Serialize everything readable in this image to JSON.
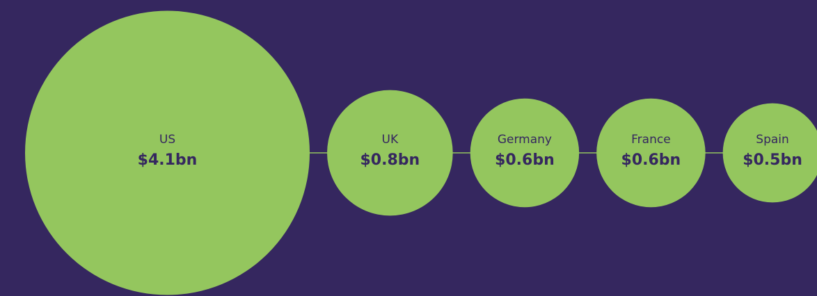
{
  "chart_data": {
    "type": "bubble",
    "categories": [
      "US",
      "UK",
      "Germany",
      "France",
      "Spain"
    ],
    "values": [
      4.1,
      0.8,
      0.6,
      0.6,
      0.5
    ],
    "value_labels": [
      "$4.1bn",
      "$0.8bn",
      "$0.6bn",
      "$0.6bn",
      "$0.5bn"
    ],
    "color": "#94c65e",
    "background": "#35275f",
    "text_color": "#35275f"
  }
}
